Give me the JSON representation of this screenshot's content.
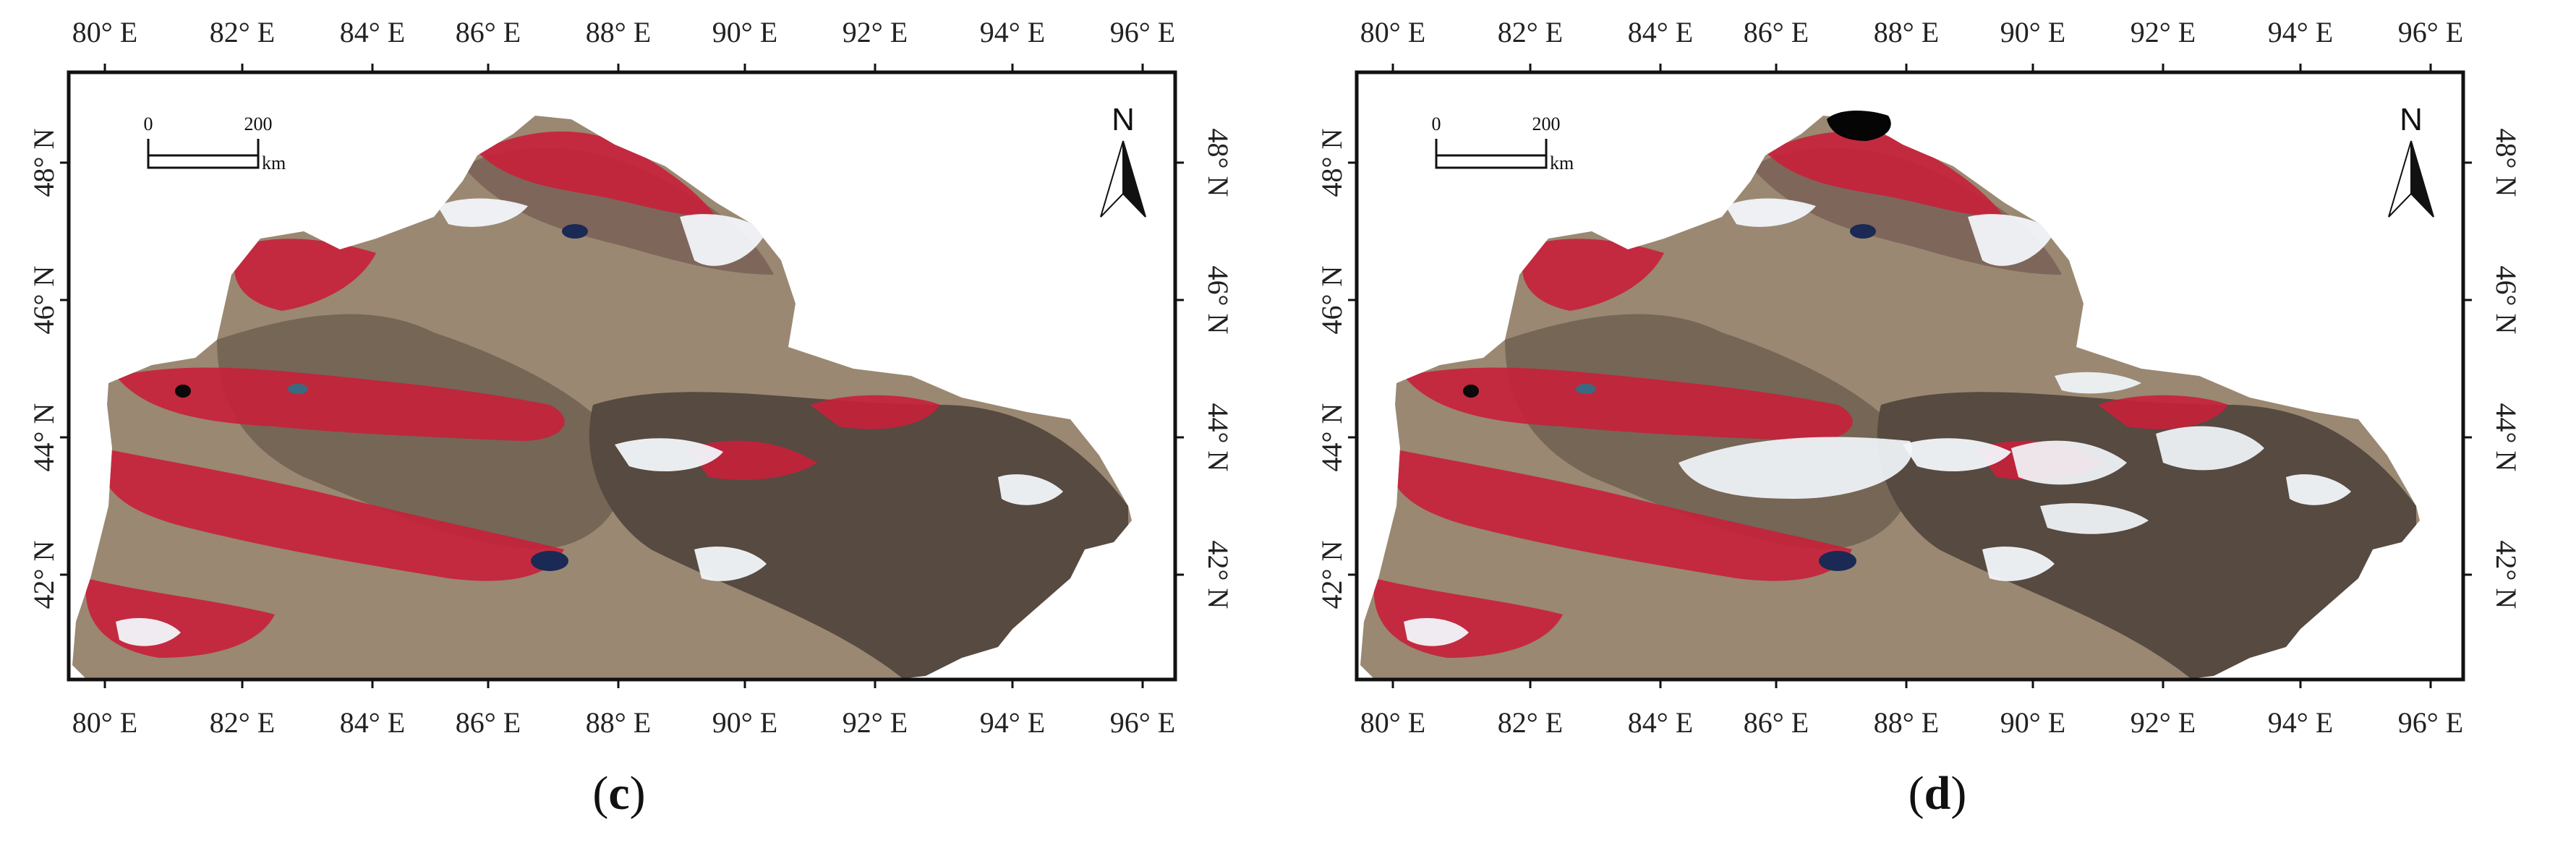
{
  "panels": [
    {
      "id": "c",
      "caption_letter": "c",
      "lon_ticks": [
        "80° E",
        "82° E",
        "84° E",
        "86° E",
        "88° E",
        "90° E",
        "92° E",
        "94° E",
        "96° E"
      ],
      "lat_ticks": [
        "48° N",
        "46° N",
        "44° N",
        "42° N"
      ],
      "scale_bar": {
        "start": "0",
        "end": "200",
        "unit": "km"
      },
      "north_label": "N",
      "has_black_patch": false,
      "extra_cloud": false
    },
    {
      "id": "d",
      "caption_letter": "d",
      "lon_ticks": [
        "80° E",
        "82° E",
        "84° E",
        "86° E",
        "88° E",
        "90° E",
        "92° E",
        "94° E",
        "96° E"
      ],
      "lat_ticks": [
        "48° N",
        "46° N",
        "44° N",
        "42° N"
      ],
      "scale_bar": {
        "start": "0",
        "end": "200",
        "unit": "km"
      },
      "north_label": "N",
      "has_black_patch": true,
      "extra_cloud": true
    }
  ],
  "colors": {
    "desert": "#9a8872",
    "vegetation": "#c8203a",
    "rock": "#4a4038",
    "snow": "#f2f6fa",
    "water": "#1a2a55",
    "frame": "#111111"
  }
}
